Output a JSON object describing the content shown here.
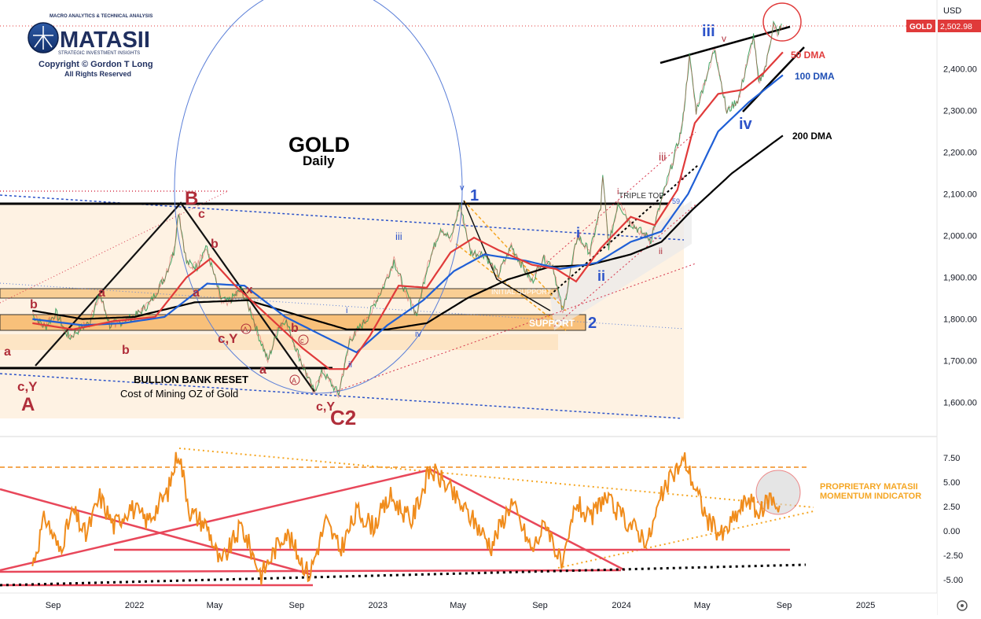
{
  "logo": {
    "tagline": "MACRO ANALYTICS & TECHNICAL ANALYSIS",
    "name": "MATASII",
    "subtitle": "STRATEGIC INVESTMENT INSIGHTS",
    "copyright": "Copyright © Gordon T Long",
    "rights": "All Rights Reserved"
  },
  "chart_data": [
    {
      "type": "line",
      "title": "GOLD",
      "subtitle": "Daily",
      "symbol": "GOLD",
      "currency": "USD",
      "last_price_label": "2,502.98",
      "x_ticks": [
        "Sep",
        "2022",
        "May",
        "Sep",
        "2023",
        "May",
        "Sep",
        "2024",
        "May",
        "Sep",
        "2025"
      ],
      "y_ticks": [
        "2,400.00",
        "2,300.00",
        "2,200.00",
        "2,100.00",
        "2,000.00",
        "1,900.00",
        "1,800.00",
        "1,700.00",
        "1,600.00"
      ],
      "ylim": [
        1550,
        2560
      ],
      "series": [
        {
          "name": "50 DMA",
          "color": "#e03a3a"
        },
        {
          "name": "100 DMA",
          "color": "#1f5fd6"
        },
        {
          "name": "200 DMA",
          "color": "#000000"
        }
      ],
      "price_path": [
        [
          "2021-08-01",
          1810
        ],
        [
          "2021-08-20",
          1780
        ],
        [
          "2021-09-05",
          1815
        ],
        [
          "2021-09-25",
          1755
        ],
        [
          "2021-10-10",
          1775
        ],
        [
          "2021-10-25",
          1790
        ],
        [
          "2021-11-10",
          1860
        ],
        [
          "2021-11-25",
          1785
        ],
        [
          "2021-12-15",
          1795
        ],
        [
          "2022-01-05",
          1810
        ],
        [
          "2022-01-25",
          1840
        ],
        [
          "2022-02-15",
          1900
        ],
        [
          "2022-03-01",
          1960
        ],
        [
          "2022-03-08",
          2060
        ],
        [
          "2022-03-20",
          1935
        ],
        [
          "2022-04-05",
          1925
        ],
        [
          "2022-04-18",
          1975
        ],
        [
          "2022-05-10",
          1850
        ],
        [
          "2022-05-20",
          1840
        ],
        [
          "2022-06-10",
          1870
        ],
        [
          "2022-06-25",
          1815
        ],
        [
          "2022-07-05",
          1765
        ],
        [
          "2022-07-20",
          1700
        ],
        [
          "2022-08-05",
          1780
        ],
        [
          "2022-08-15",
          1800
        ],
        [
          "2022-09-05",
          1710
        ],
        [
          "2022-09-27",
          1625
        ],
        [
          "2022-10-10",
          1675
        ],
        [
          "2022-10-25",
          1640
        ],
        [
          "2022-11-03",
          1620
        ],
        [
          "2022-11-20",
          1750
        ],
        [
          "2022-12-15",
          1800
        ],
        [
          "2023-01-10",
          1880
        ],
        [
          "2023-01-25",
          1940
        ],
        [
          "2023-02-10",
          1870
        ],
        [
          "2023-02-28",
          1810
        ],
        [
          "2023-03-15",
          1920
        ],
        [
          "2023-04-05",
          2020
        ],
        [
          "2023-04-20",
          1990
        ],
        [
          "2023-05-04",
          2075
        ],
        [
          "2023-05-20",
          1960
        ],
        [
          "2023-06-10",
          1955
        ],
        [
          "2023-06-30",
          1905
        ],
        [
          "2023-07-20",
          1975
        ],
        [
          "2023-08-10",
          1915
        ],
        [
          "2023-08-20",
          1890
        ],
        [
          "2023-09-05",
          1945
        ],
        [
          "2023-09-20",
          1930
        ],
        [
          "2023-10-05",
          1815
        ],
        [
          "2023-10-27",
          2000
        ],
        [
          "2023-11-15",
          1960
        ],
        [
          "2023-12-01",
          2070
        ],
        [
          "2023-12-04",
          2140
        ],
        [
          "2023-12-13",
          1975
        ],
        [
          "2023-12-27",
          2080
        ],
        [
          "2024-01-15",
          2030
        ],
        [
          "2024-02-14",
          1990
        ],
        [
          "2024-03-01",
          2085
        ],
        [
          "2024-03-15",
          2160
        ],
        [
          "2024-04-01",
          2260
        ],
        [
          "2024-04-12",
          2430
        ],
        [
          "2024-04-22",
          2300
        ],
        [
          "2024-05-20",
          2450
        ],
        [
          "2024-06-07",
          2295
        ],
        [
          "2024-06-25",
          2330
        ],
        [
          "2024-07-17",
          2480
        ],
        [
          "2024-07-25",
          2365
        ],
        [
          "2024-08-05",
          2410
        ],
        [
          "2024-08-16",
          2510
        ],
        [
          "2024-08-22",
          2485
        ],
        [
          "2024-08-28",
          2502
        ]
      ],
      "ma50_path": [
        [
          "2021-08-01",
          1790
        ],
        [
          "2021-10-01",
          1775
        ],
        [
          "2021-12-01",
          1795
        ],
        [
          "2022-02-01",
          1805
        ],
        [
          "2022-03-20",
          1900
        ],
        [
          "2022-04-25",
          1945
        ],
        [
          "2022-06-01",
          1880
        ],
        [
          "2022-07-25",
          1800
        ],
        [
          "2022-09-10",
          1730
        ],
        [
          "2022-10-20",
          1680
        ],
        [
          "2022-11-15",
          1680
        ],
        [
          "2022-12-20",
          1760
        ],
        [
          "2023-02-01",
          1880
        ],
        [
          "2023-03-15",
          1875
        ],
        [
          "2023-04-20",
          1960
        ],
        [
          "2023-05-25",
          1995
        ],
        [
          "2023-07-01",
          1965
        ],
        [
          "2023-08-20",
          1930
        ],
        [
          "2023-09-25",
          1920
        ],
        [
          "2023-10-25",
          1890
        ],
        [
          "2023-12-01",
          1970
        ],
        [
          "2024-01-15",
          2045
        ],
        [
          "2024-02-20",
          2025
        ],
        [
          "2024-03-25",
          2110
        ],
        [
          "2024-04-20",
          2270
        ],
        [
          "2024-05-25",
          2340
        ],
        [
          "2024-07-01",
          2350
        ],
        [
          "2024-08-01",
          2390
        ],
        [
          "2024-08-30",
          2440
        ]
      ],
      "ma100_path": [
        [
          "2021-08-01",
          1800
        ],
        [
          "2021-10-15",
          1785
        ],
        [
          "2021-12-15",
          1790
        ],
        [
          "2022-02-15",
          1805
        ],
        [
          "2022-04-20",
          1885
        ],
        [
          "2022-06-15",
          1880
        ],
        [
          "2022-08-15",
          1805
        ],
        [
          "2022-10-10",
          1760
        ],
        [
          "2022-11-30",
          1720
        ],
        [
          "2023-01-15",
          1785
        ],
        [
          "2023-03-10",
          1845
        ],
        [
          "2023-04-25",
          1915
        ],
        [
          "2023-06-10",
          1955
        ],
        [
          "2023-08-10",
          1940
        ],
        [
          "2023-10-01",
          1920
        ],
        [
          "2023-11-25",
          1935
        ],
        [
          "2024-01-15",
          1985
        ],
        [
          "2024-03-01",
          2010
        ],
        [
          "2024-04-10",
          2100
        ],
        [
          "2024-05-25",
          2250
        ],
        [
          "2024-07-10",
          2320
        ],
        [
          "2024-08-30",
          2385
        ]
      ],
      "ma200_path": [
        [
          "2021-08-01",
          1820
        ],
        [
          "2021-10-15",
          1800
        ],
        [
          "2022-01-01",
          1805
        ],
        [
          "2022-04-01",
          1840
        ],
        [
          "2022-06-20",
          1845
        ],
        [
          "2022-09-01",
          1810
        ],
        [
          "2022-11-15",
          1775
        ],
        [
          "2023-01-15",
          1775
        ],
        [
          "2023-03-15",
          1790
        ],
        [
          "2023-05-15",
          1850
        ],
        [
          "2023-07-15",
          1895
        ],
        [
          "2023-09-15",
          1925
        ],
        [
          "2023-11-15",
          1930
        ],
        [
          "2024-01-15",
          1955
        ],
        [
          "2024-03-01",
          1985
        ],
        [
          "2024-04-15",
          2060
        ],
        [
          "2024-06-15",
          2150
        ],
        [
          "2024-08-30",
          2240
        ]
      ]
    },
    {
      "type": "line",
      "title": "PROPRIETARY MATASII MOMENTUM INDICATOR",
      "y_ticks": [
        "7.50",
        "5.00",
        "2.50",
        "0.00",
        "-2.50",
        "-5.00"
      ],
      "ylim": [
        -6.5,
        9.0
      ],
      "series": [
        {
          "name": "momentum",
          "color": "#f08c1c"
        }
      ],
      "momentum_path": [
        [
          "2021-08-01",
          -3.5
        ],
        [
          "2021-08-20",
          1.5
        ],
        [
          "2021-09-10",
          -2.0
        ],
        [
          "2021-10-01",
          2.0
        ],
        [
          "2021-10-20",
          -0.5
        ],
        [
          "2021-11-10",
          3.5
        ],
        [
          "2021-12-01",
          0.5
        ],
        [
          "2021-12-25",
          2.5
        ],
        [
          "2022-01-20",
          1.0
        ],
        [
          "2022-02-20",
          4.0
        ],
        [
          "2022-03-08",
          8.3
        ],
        [
          "2022-03-25",
          2.0
        ],
        [
          "2022-04-20",
          0.5
        ],
        [
          "2022-05-10",
          -3.5
        ],
        [
          "2022-06-10",
          0.5
        ],
        [
          "2022-07-10",
          -4.5
        ],
        [
          "2022-08-15",
          0.0
        ],
        [
          "2022-09-20",
          -4.5
        ],
        [
          "2022-10-15",
          1.0
        ],
        [
          "2022-11-05",
          -2.0
        ],
        [
          "2022-12-01",
          2.0
        ],
        [
          "2022-12-25",
          0.5
        ],
        [
          "2023-01-20",
          3.5
        ],
        [
          "2023-02-20",
          1.0
        ],
        [
          "2023-03-20",
          6.3
        ],
        [
          "2023-04-10",
          5.0
        ],
        [
          "2023-05-01",
          3.0
        ],
        [
          "2023-05-25",
          1.0
        ],
        [
          "2023-06-20",
          -1.5
        ],
        [
          "2023-07-20",
          3.0
        ],
        [
          "2023-08-20",
          -2.0
        ],
        [
          "2023-09-10",
          1.0
        ],
        [
          "2023-10-05",
          -4.0
        ],
        [
          "2023-10-25",
          3.0
        ],
        [
          "2023-11-15",
          1.0
        ],
        [
          "2023-12-05",
          3.5
        ],
        [
          "2024-01-01",
          1.5
        ],
        [
          "2024-02-10",
          -1.0
        ],
        [
          "2024-03-01",
          3.5
        ],
        [
          "2024-03-20",
          6.0
        ],
        [
          "2024-04-05",
          7.3
        ],
        [
          "2024-04-20",
          4.5
        ],
        [
          "2024-05-10",
          1.0
        ],
        [
          "2024-06-01",
          -0.5
        ],
        [
          "2024-06-20",
          1.5
        ],
        [
          "2024-07-10",
          3.5
        ],
        [
          "2024-07-25",
          1.5
        ],
        [
          "2024-08-10",
          3.5
        ],
        [
          "2024-08-25",
          2.5
        ]
      ]
    }
  ],
  "annotations": {
    "wave_a_lower": "a",
    "wave_b_lower": "b",
    "wave_cy_1": "c,Y",
    "wave_A": "A",
    "wave_a_2": "a",
    "wave_b_2": "b",
    "wave_B": "B",
    "wave_c_small": "c",
    "wave_b_3": "b",
    "wave_a_3": "a",
    "wave_x": "x",
    "wave_cy_2": "c,Y",
    "wave_a_4": "a",
    "wave_b_4": "b",
    "wave_c_circled": "c",
    "wave_a_circled": "A",
    "wave_A_circled": "A",
    "wave_cy_3": "c,Y",
    "wave_C2": "C2",
    "wave_i_blue": "i",
    "wave_ii_blue": "ii",
    "wave_iii_blue": "iii",
    "wave_iv_blue": "iv",
    "wave_v_blue": "v",
    "wave_1": "1",
    "wave_2": "2",
    "wave_i_big": "i",
    "wave_ii_big": "ii",
    "wave_iii_big": "iii",
    "wave_iv_big": "iv",
    "wave_i_red": "i",
    "wave_ii_red": "ii",
    "wave_iii_red": "iii",
    "wave_v_red": "v",
    "wave_v_small": "v",
    "bullion_reset": "BULLION BANK RESET",
    "cost_mining": "Cost of Mining OZ of Gold",
    "triple_top": "TRIPLE TOP",
    "support_label": "SUPPORT",
    "initial_support": "INITIAL SUPPORT",
    "fib_label": "59"
  }
}
